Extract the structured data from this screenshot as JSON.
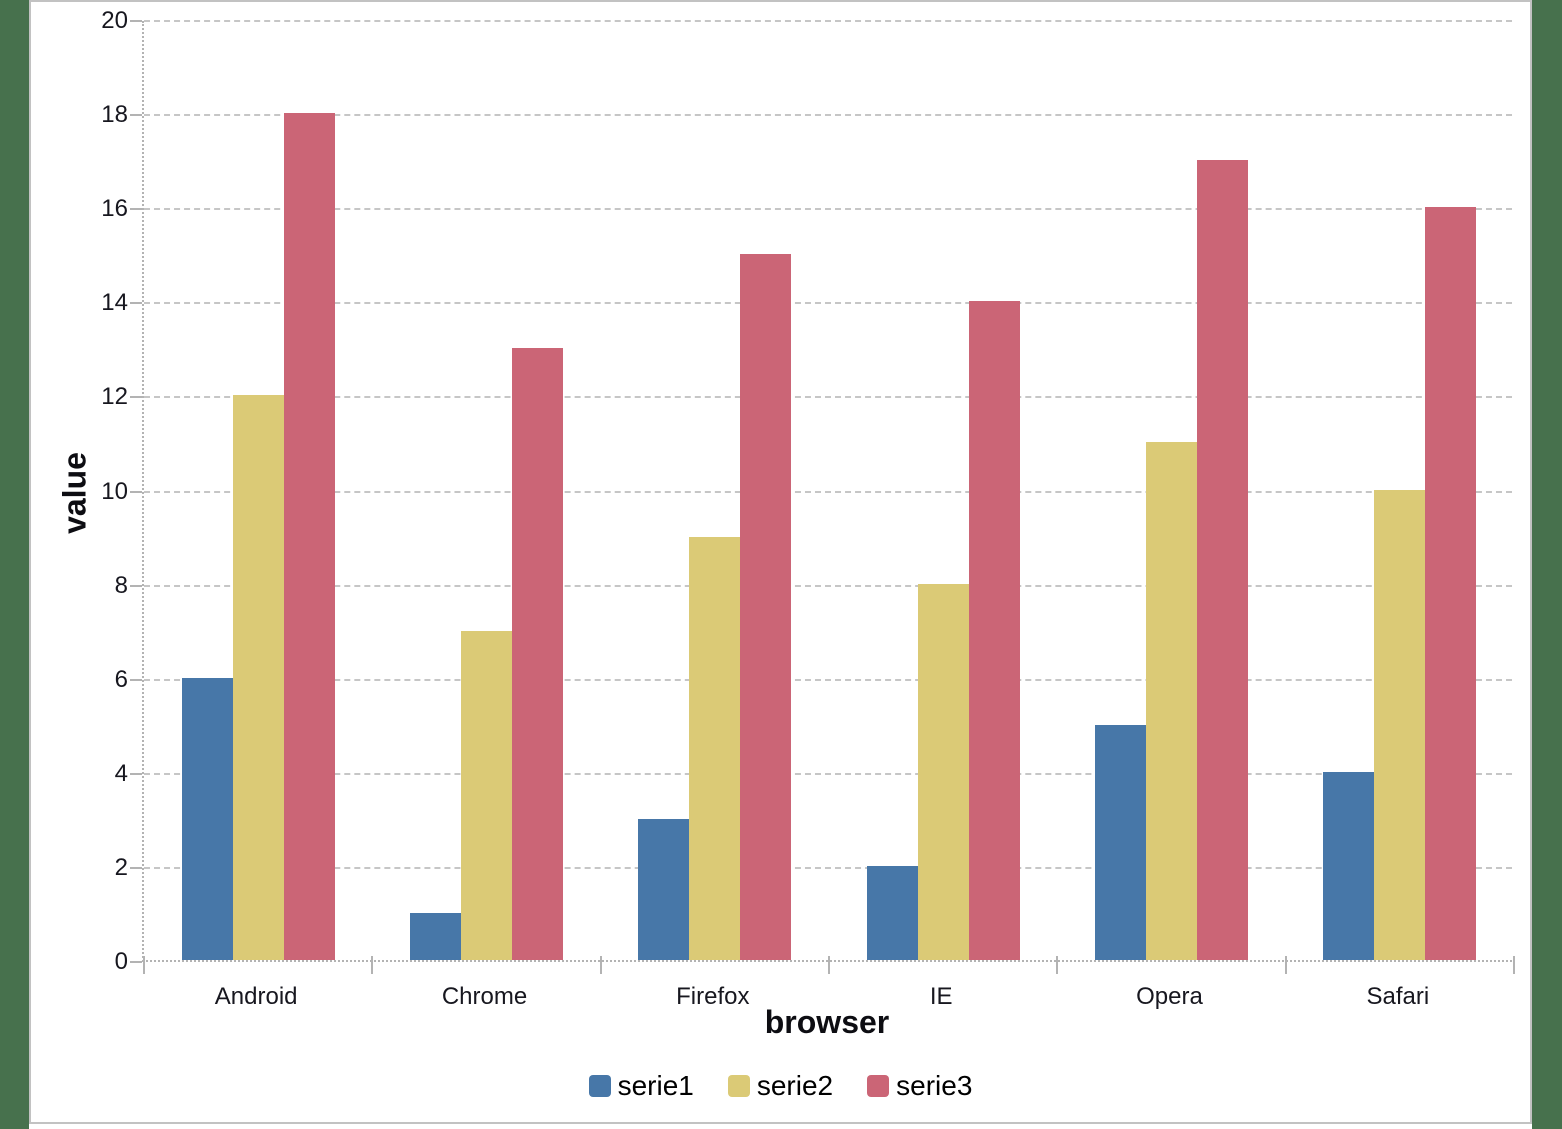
{
  "canvas": {
    "frame_color": "#47714d",
    "background": "#ffffff",
    "border_color": "#c2c2c2"
  },
  "chart_data": {
    "type": "bar",
    "title": "",
    "xlabel": "browser",
    "ylabel": "value",
    "categories": [
      "Android",
      "Chrome",
      "Firefox",
      "IE",
      "Opera",
      "Safari"
    ],
    "series": [
      {
        "name": "serie1",
        "color": "#4777a8",
        "values": [
          6,
          1,
          3,
          2,
          5,
          4
        ]
      },
      {
        "name": "serie2",
        "color": "#dbca76",
        "values": [
          12,
          7,
          9,
          8,
          11,
          10
        ]
      },
      {
        "name": "serie3",
        "color": "#cb6576",
        "values": [
          18,
          13,
          15,
          14,
          17,
          16
        ]
      }
    ],
    "ylim": [
      0,
      20
    ],
    "ytick_interval": 2,
    "ytick_labels": [
      "0",
      "2",
      "4",
      "6",
      "8",
      "10",
      "12",
      "14",
      "16",
      "18",
      "20"
    ],
    "grid": true,
    "gridline_color": "#c6c6c6",
    "axis_color": "#b3b3b3",
    "legend_position": "bottom"
  }
}
